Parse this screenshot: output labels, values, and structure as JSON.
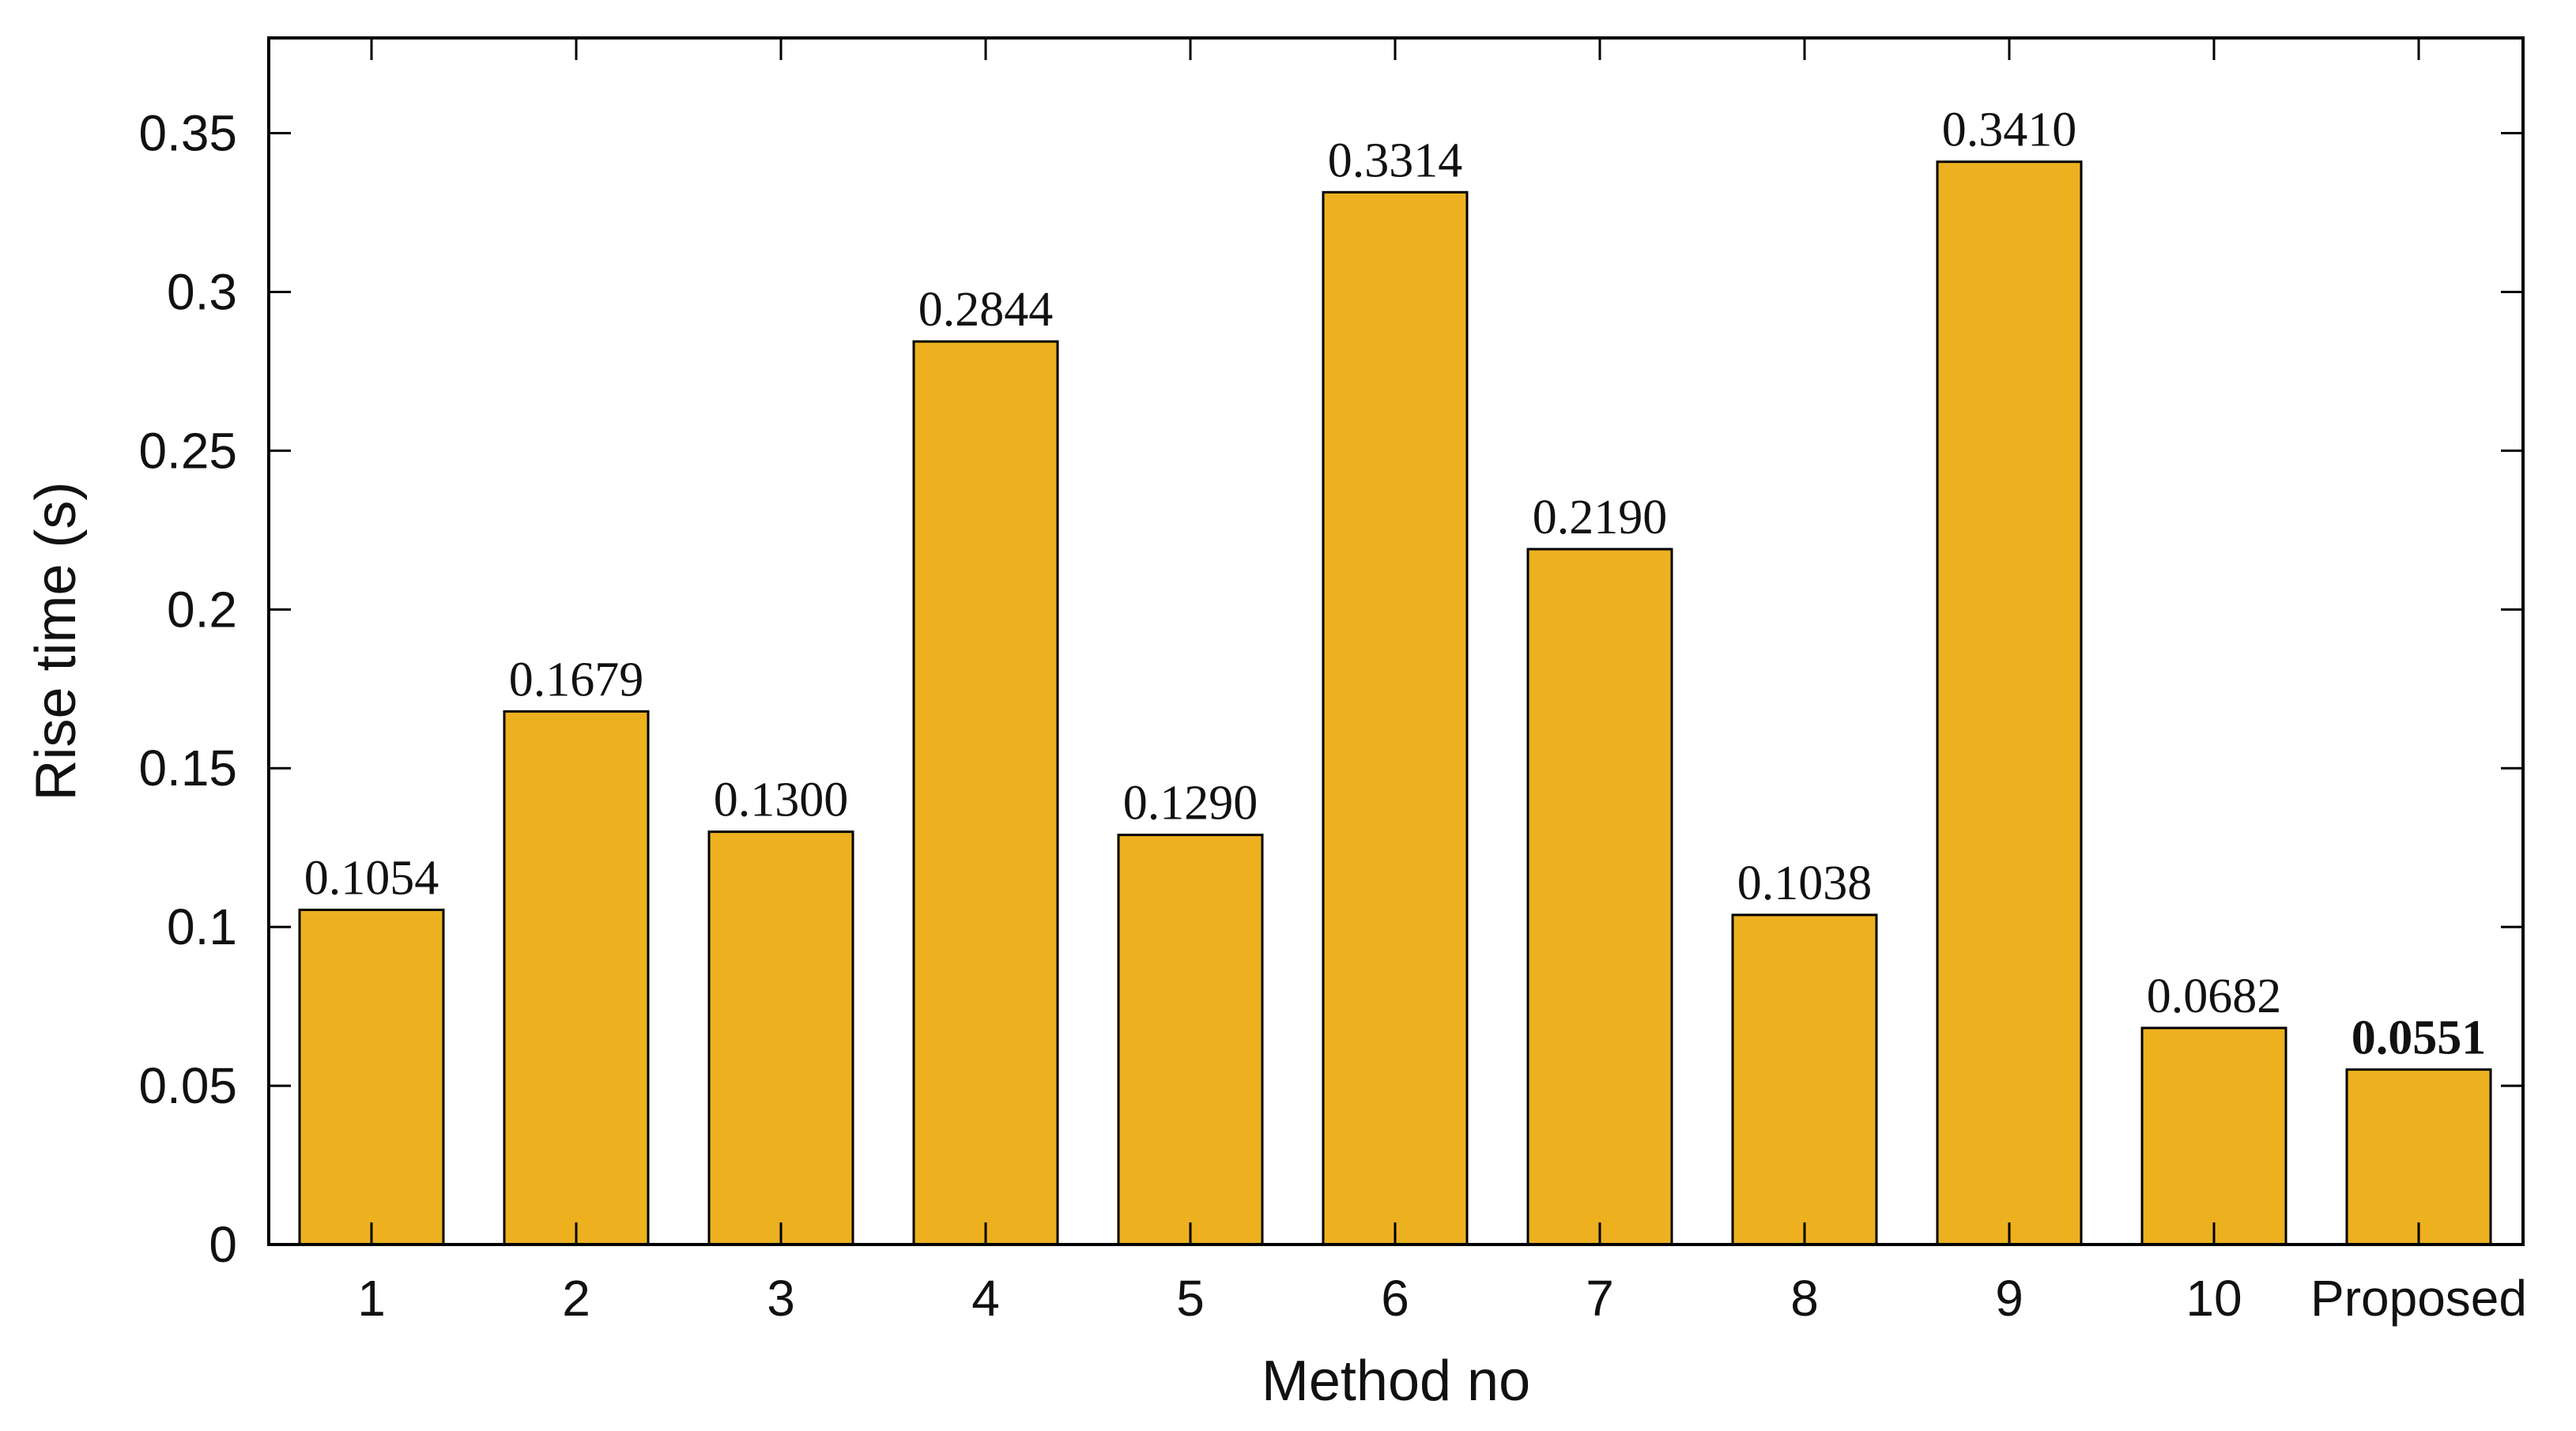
{
  "chart_data": {
    "type": "bar",
    "title": "",
    "xlabel": "Method no",
    "ylabel": "Rise time (s)",
    "categories": [
      "1",
      "2",
      "3",
      "4",
      "5",
      "6",
      "7",
      "8",
      "9",
      "10",
      "Proposed"
    ],
    "values": [
      0.1054,
      0.1679,
      0.13,
      0.2844,
      0.129,
      0.3314,
      0.219,
      0.1038,
      0.341,
      0.0682,
      0.0551
    ],
    "data_labels": [
      "0.1054",
      "0.1679",
      "0.1300",
      "0.2844",
      "0.1290",
      "0.3314",
      "0.2190",
      "0.1038",
      "0.3410",
      "0.0682",
      "0.0551"
    ],
    "highlighted_label": "0.0551",
    "y_ticks": [
      "0",
      "0.05",
      "0.1",
      "0.15",
      "0.2",
      "0.25",
      "0.3",
      "0.35"
    ],
    "y_tick_values": [
      0,
      0.05,
      0.1,
      0.15,
      0.2,
      0.25,
      0.3,
      0.35
    ],
    "ylim": [
      0,
      0.38
    ],
    "grid": false,
    "legend": "none",
    "bar_color": "#EDB120",
    "bar_edge_color": "#000000"
  }
}
